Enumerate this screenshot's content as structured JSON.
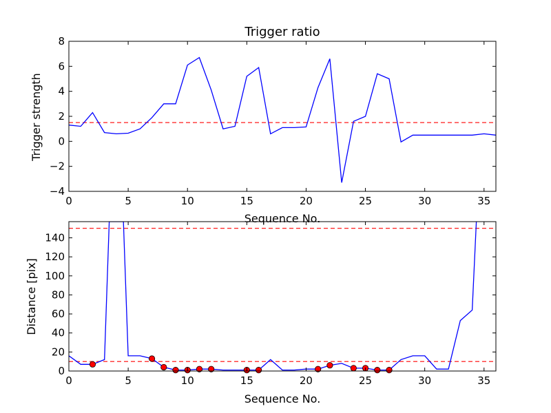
{
  "chart_data": [
    {
      "type": "line",
      "title": "Trigger ratio",
      "xlabel": "Sequence No.",
      "ylabel": "Trigger strength",
      "xlim": [
        0,
        36
      ],
      "ylim": [
        -4,
        8
      ],
      "xticks": [
        0,
        5,
        10,
        15,
        20,
        25,
        30,
        35
      ],
      "yticks": [
        -4,
        -2,
        0,
        2,
        4,
        6,
        8
      ],
      "grid": false,
      "colors": {
        "series": "#0000ff",
        "threshold": "#ff0000"
      },
      "series": [
        {
          "x": [
            0,
            1,
            2,
            3,
            4,
            5,
            6,
            7,
            8,
            9,
            10,
            11,
            12,
            13,
            14,
            15,
            16,
            17,
            18,
            19,
            20,
            21,
            22,
            23,
            24,
            25,
            26,
            27,
            28,
            29,
            30,
            31,
            32,
            33,
            34,
            35,
            36
          ],
          "values": [
            1.3,
            1.2,
            2.3,
            0.7,
            0.6,
            0.65,
            1.0,
            1.9,
            3.0,
            3.0,
            6.1,
            6.7,
            4.1,
            1.0,
            1.2,
            5.2,
            5.9,
            0.6,
            1.1,
            1.1,
            1.15,
            4.3,
            6.6,
            -3.3,
            1.6,
            2.0,
            5.4,
            5.0,
            -0.05,
            0.5,
            0.5,
            0.5,
            0.5,
            0.5,
            0.5,
            0.6,
            0.5
          ]
        }
      ],
      "threshold_lines": [
        {
          "y": 1.5,
          "style": "dashed"
        }
      ]
    },
    {
      "type": "line",
      "title": "",
      "xlabel": "Sequence No.",
      "ylabel": "Distance [pix]",
      "xlim": [
        0,
        36
      ],
      "ylim": [
        0,
        157
      ],
      "xticks": [
        0,
        5,
        10,
        15,
        20,
        25,
        30,
        35
      ],
      "yticks": [
        0,
        20,
        40,
        60,
        80,
        100,
        120,
        140
      ],
      "grid": false,
      "colors": {
        "series": "#0000ff",
        "threshold": "#ff0000",
        "marker": "#ff0000"
      },
      "series": [
        {
          "x": [
            0,
            1,
            2,
            3,
            3.4,
            4.6,
            5,
            6,
            7,
            8,
            9,
            10,
            11,
            12,
            13,
            14,
            15,
            16,
            17,
            18,
            19,
            20,
            21,
            22,
            23,
            24,
            25,
            26,
            27,
            28,
            29,
            30,
            31,
            32,
            33,
            34,
            34.35
          ],
          "values": [
            16,
            7,
            7,
            12,
            157,
            157,
            16,
            16,
            13,
            4,
            1,
            1,
            2,
            2,
            1,
            1,
            1,
            1,
            12,
            1,
            1,
            2,
            2,
            6,
            8,
            3,
            3,
            1,
            1,
            12,
            16,
            16,
            2,
            2,
            53,
            64,
            157
          ]
        }
      ],
      "markers": {
        "x": [
          2,
          7,
          8,
          9,
          10,
          11,
          12,
          15,
          16,
          21,
          22,
          24,
          25,
          26,
          27
        ],
        "values": [
          7,
          13,
          4,
          1,
          1,
          2,
          2,
          1,
          1,
          2,
          6,
          3,
          3,
          1,
          1
        ]
      },
      "threshold_lines": [
        {
          "y": 150,
          "style": "dashed"
        },
        {
          "y": 10,
          "style": "dashed"
        }
      ]
    }
  ]
}
